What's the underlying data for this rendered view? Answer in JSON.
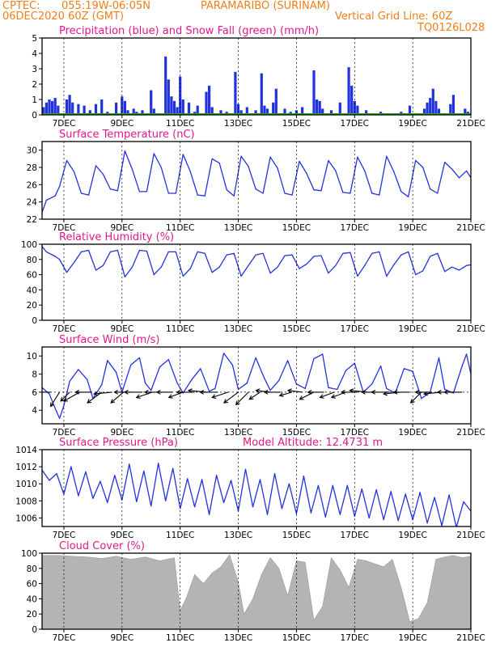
{
  "header": {
    "source": "CPTEC:",
    "coords": "055:19W-06:05N",
    "station": "PARAMARIBO (SURINAM)",
    "run": "06DEC2020 60Z (GMT)",
    "grid_note": "Vertical Grid Line: 60Z",
    "code": "TQ0126L028"
  },
  "colors": {
    "header": "#f07f1a",
    "titles": "#e0188a",
    "series": "#2233dd",
    "snow": "#22aa22",
    "cloud": "#b4b4b4"
  },
  "x_axis": {
    "start_day": 6.25,
    "end_day": 21.0,
    "tick_days": [
      7,
      9,
      11,
      13,
      15,
      17,
      19,
      21
    ],
    "tick_labels": [
      "7DEC",
      "9DEC",
      "11DEC",
      "13DEC",
      "15DEC",
      "17DEC",
      "19DEC",
      "21DEC"
    ]
  },
  "chart_data": [
    {
      "id": "precip",
      "type": "bar",
      "title": "Precipitation (blue) and Snow Fall (green) (mm/h)",
      "ylim": [
        0,
        5
      ],
      "yticks": [
        0,
        1,
        2,
        3,
        4,
        5
      ],
      "ytick_labels": [
        "0",
        "1",
        "2",
        "3",
        "4",
        "5"
      ],
      "x": [
        6.3,
        6.4,
        6.5,
        6.6,
        6.7,
        6.8,
        7.1,
        7.2,
        7.3,
        7.5,
        7.7,
        7.9,
        8.1,
        8.3,
        8.5,
        8.8,
        9.0,
        9.1,
        9.2,
        9.3,
        9.4,
        9.5,
        9.7,
        10.0,
        10.1,
        10.5,
        10.6,
        10.7,
        10.8,
        10.9,
        11.0,
        11.1,
        11.3,
        11.5,
        11.6,
        11.9,
        12.0,
        12.1,
        12.4,
        12.6,
        12.9,
        13.0,
        13.1,
        13.3,
        13.6,
        13.8,
        13.9,
        14.0,
        14.2,
        14.3,
        14.6,
        14.8,
        15.0,
        15.2,
        15.4,
        15.6,
        15.7,
        15.8,
        15.9,
        16.2,
        16.5,
        16.8,
        16.9,
        17.0,
        17.1,
        17.4,
        17.9,
        18.2,
        18.6,
        18.9,
        19.2,
        19.4,
        19.5,
        19.6,
        19.7,
        19.8,
        19.9,
        20.3,
        20.4,
        20.8,
        20.9
      ],
      "series": [
        {
          "values": [
            0.5,
            0.8,
            1.0,
            0.9,
            1.1,
            0.6,
            1.0,
            1.3,
            0.8,
            0.7,
            0.6,
            0.3,
            0.7,
            1.0,
            0.2,
            0.8,
            1.2,
            0.9,
            0.3,
            0.1,
            0.4,
            0.2,
            0.3,
            1.6,
            0.4,
            3.8,
            2.3,
            1.2,
            0.9,
            0.5,
            2.5,
            1.0,
            0.8,
            0.2,
            0.6,
            1.5,
            1.9,
            0.5,
            0.3,
            0.2,
            2.8,
            0.7,
            0.3,
            0.5,
            0.3,
            2.7,
            0.6,
            0.4,
            0.8,
            1.7,
            0.4,
            0.2,
            0.3,
            0.5,
            0.1,
            2.9,
            1.0,
            0.9,
            0.4,
            0.3,
            0.8,
            3.1,
            1.9,
            0.9,
            0.6,
            0.3,
            0.2,
            0.1,
            0.2,
            0.6,
            0.1,
            0.4,
            0.8,
            1.1,
            1.7,
            0.9,
            0.4,
            0.7,
            1.3,
            0.4,
            0.2
          ]
        }
      ]
    },
    {
      "id": "temperature",
      "type": "line",
      "title": "Surface Temperature (nC)",
      "ylim": [
        22,
        31
      ],
      "yticks": [
        22,
        24,
        26,
        28,
        30
      ],
      "ytick_labels": [
        "22",
        "24",
        "26",
        "28",
        "30"
      ],
      "x": [
        6.25,
        6.4,
        6.7,
        6.85,
        7.1,
        7.35,
        7.6,
        7.85,
        8.1,
        8.35,
        8.6,
        8.85,
        9.1,
        9.35,
        9.6,
        9.85,
        10.1,
        10.35,
        10.6,
        10.85,
        11.1,
        11.35,
        11.6,
        11.85,
        12.1,
        12.35,
        12.6,
        12.85,
        13.1,
        13.35,
        13.6,
        13.85,
        14.1,
        14.35,
        14.6,
        14.85,
        15.1,
        15.35,
        15.6,
        15.85,
        16.1,
        16.35,
        16.6,
        16.85,
        17.1,
        17.35,
        17.6,
        17.85,
        18.1,
        18.35,
        18.6,
        18.85,
        19.1,
        19.35,
        19.6,
        19.85,
        20.1,
        20.35,
        20.6,
        20.85,
        21.0
      ],
      "series": [
        {
          "name": "Temperature",
          "values": [
            22.8,
            24.2,
            24.7,
            25.8,
            28.8,
            27.5,
            25.0,
            24.8,
            28.2,
            27.2,
            25.5,
            25.3,
            29.9,
            27.8,
            25.2,
            25.2,
            29.6,
            28.0,
            25.0,
            25.0,
            29.5,
            27.5,
            24.8,
            24.7,
            29.0,
            28.5,
            25.4,
            24.7,
            29.3,
            28.1,
            25.5,
            25.0,
            29.2,
            27.9,
            25.0,
            24.8,
            28.7,
            27.3,
            25.4,
            25.3,
            28.8,
            27.6,
            25.1,
            25.0,
            29.2,
            27.6,
            25.0,
            24.8,
            29.3,
            27.5,
            25.2,
            24.6,
            28.8,
            28.0,
            25.5,
            25.0,
            28.6,
            27.8,
            26.8,
            27.6,
            26.8
          ]
        }
      ]
    },
    {
      "id": "humidity",
      "type": "line",
      "title": "Relative Humidity (%)",
      "ylim": [
        0,
        100
      ],
      "yticks": [
        0,
        20,
        40,
        60,
        80,
        100
      ],
      "ytick_labels": [
        "0",
        "20",
        "40",
        "60",
        "80",
        "100"
      ],
      "x": [
        6.25,
        6.4,
        6.7,
        6.85,
        7.1,
        7.35,
        7.6,
        7.85,
        8.1,
        8.35,
        8.6,
        8.85,
        9.1,
        9.35,
        9.6,
        9.85,
        10.1,
        10.35,
        10.6,
        10.85,
        11.1,
        11.35,
        11.6,
        11.85,
        12.1,
        12.35,
        12.6,
        12.85,
        13.1,
        13.35,
        13.6,
        13.85,
        14.1,
        14.35,
        14.6,
        14.85,
        15.1,
        15.35,
        15.6,
        15.85,
        16.1,
        16.35,
        16.6,
        16.85,
        17.1,
        17.35,
        17.6,
        17.85,
        18.1,
        18.35,
        18.6,
        18.85,
        19.1,
        19.35,
        19.6,
        19.85,
        20.1,
        20.35,
        20.6,
        20.85,
        21.0
      ],
      "series": [
        {
          "name": "RH",
          "values": [
            97,
            90,
            84,
            80,
            63,
            76,
            90,
            92,
            66,
            72,
            90,
            92,
            57,
            70,
            92,
            91,
            60,
            70,
            90,
            90,
            58,
            68,
            90,
            88,
            63,
            70,
            86,
            88,
            58,
            72,
            86,
            88,
            62,
            70,
            85,
            86,
            68,
            74,
            84,
            85,
            62,
            72,
            88,
            89,
            58,
            72,
            88,
            90,
            58,
            73,
            86,
            90,
            60,
            65,
            84,
            88,
            64,
            70,
            66,
            72,
            73
          ]
        }
      ]
    },
    {
      "id": "wind",
      "type": "line",
      "title": "Surface Wind (m/s)",
      "ylim": [
        2.5,
        11
      ],
      "yticks": [
        4,
        6,
        8,
        10
      ],
      "ytick_labels": [
        "4",
        "6",
        "8",
        "10"
      ],
      "x": [
        6.25,
        6.5,
        6.7,
        6.85,
        7.0,
        7.2,
        7.5,
        7.8,
        8.0,
        8.3,
        8.5,
        8.8,
        9.0,
        9.3,
        9.6,
        9.8,
        10.0,
        10.3,
        10.6,
        10.9,
        11.1,
        11.4,
        11.7,
        12.0,
        12.2,
        12.5,
        12.8,
        13.0,
        13.3,
        13.6,
        13.9,
        14.1,
        14.4,
        14.7,
        15.0,
        15.3,
        15.6,
        15.9,
        16.1,
        16.4,
        16.7,
        17.0,
        17.3,
        17.6,
        17.9,
        18.1,
        18.4,
        18.7,
        19.0,
        19.3,
        19.6,
        19.9,
        20.1,
        20.4,
        20.7,
        20.85,
        21.0
      ],
      "series": [
        {
          "name": "Wind speed",
          "values": [
            6.5,
            5.8,
            4.2,
            3.1,
            4.5,
            7.2,
            8.5,
            7.4,
            5.3,
            6.8,
            9.5,
            8.2,
            6.0,
            9.0,
            9.8,
            7.0,
            6.2,
            8.8,
            9.6,
            7.0,
            5.9,
            7.4,
            8.6,
            6.1,
            6.4,
            10.3,
            9.0,
            6.3,
            7.0,
            9.8,
            7.5,
            6.2,
            7.3,
            9.5,
            6.9,
            6.4,
            9.7,
            10.2,
            6.5,
            6.3,
            8.4,
            9.2,
            6.0,
            6.9,
            8.9,
            6.4,
            5.9,
            8.6,
            8.3,
            5.3,
            6.0,
            9.8,
            6.3,
            5.9,
            8.9,
            10.2,
            8.0
          ]
        }
      ],
      "vectors": {
        "x": [
          6.55,
          6.85,
          7.2,
          7.55,
          7.95,
          8.3,
          8.65,
          9.05,
          9.35,
          9.7,
          10.05,
          10.4,
          10.75,
          11.1,
          11.5,
          11.9,
          12.3,
          12.65,
          13.0,
          13.35,
          13.75,
          14.1,
          14.45,
          14.85,
          15.2,
          15.6,
          15.95,
          16.3,
          16.7,
          17.1,
          17.45,
          17.8,
          18.2,
          18.55,
          18.9,
          19.3,
          19.65,
          20.0,
          20.35,
          20.7
        ],
        "u": [
          -1.0,
          -0.5,
          -0.5,
          -0.9,
          -0.9,
          -0.8,
          -1.0,
          -0.7,
          -1.0,
          -1.0,
          -0.9,
          -1.0,
          -0.9,
          -0.8,
          -1.0,
          -1.0,
          -1.0,
          -0.9,
          -0.8,
          -0.7,
          -0.6,
          -0.8,
          -0.9,
          -0.7,
          -0.8,
          -0.8,
          -0.9,
          -0.8,
          -0.8,
          -0.9,
          -1.0,
          -0.9,
          -1.0,
          -0.9,
          -0.9,
          -0.6,
          -0.9,
          -1.0,
          -0.8,
          -1.0
        ],
        "v": [
          0.0,
          -0.8,
          -0.5,
          -0.5,
          0.0,
          -0.6,
          -0.1,
          -0.6,
          0.0,
          0.0,
          -0.3,
          0.0,
          0.0,
          -0.3,
          0.0,
          0.1,
          0.0,
          -0.3,
          -0.6,
          -0.7,
          -0.4,
          0.1,
          0.0,
          -0.2,
          0.1,
          -0.4,
          0.0,
          -0.3,
          -0.3,
          0.0,
          0.1,
          0.0,
          0.0,
          -0.1,
          0.0,
          -0.6,
          0.0,
          -0.1,
          0.0,
          0.0
        ]
      }
    },
    {
      "id": "pressure",
      "type": "line",
      "title": "Surface Pressure (hPa)",
      "annotation": "Model Altitude: 12.4731 m",
      "ylim": [
        1005,
        1014
      ],
      "yticks": [
        1006,
        1008,
        1010,
        1012,
        1014
      ],
      "ytick_labels": [
        "1006",
        "1008",
        "1010",
        "1012",
        "1014"
      ],
      "x": [
        6.25,
        6.5,
        6.75,
        7.0,
        7.25,
        7.5,
        7.75,
        8.0,
        8.25,
        8.5,
        8.75,
        9.0,
        9.25,
        9.5,
        9.75,
        10.0,
        10.25,
        10.5,
        10.75,
        11.0,
        11.25,
        11.5,
        11.75,
        12.0,
        12.25,
        12.5,
        12.75,
        13.0,
        13.25,
        13.5,
        13.75,
        14.0,
        14.25,
        14.5,
        14.75,
        15.0,
        15.25,
        15.5,
        15.75,
        16.0,
        16.25,
        16.5,
        16.75,
        17.0,
        17.25,
        17.5,
        17.75,
        18.0,
        18.25,
        18.5,
        18.75,
        19.0,
        19.25,
        19.5,
        19.75,
        20.0,
        20.25,
        20.5,
        20.75,
        21.0
      ],
      "series": [
        {
          "name": "Pressure",
          "values": [
            1011.6,
            1010.4,
            1011.2,
            1008.8,
            1012.0,
            1008.6,
            1011.4,
            1008.3,
            1010.3,
            1007.8,
            1011.0,
            1008.1,
            1012.3,
            1007.9,
            1011.5,
            1007.4,
            1012.4,
            1008.0,
            1011.8,
            1007.1,
            1010.6,
            1007.3,
            1010.5,
            1006.4,
            1011.0,
            1007.8,
            1010.4,
            1006.8,
            1011.7,
            1007.3,
            1010.5,
            1006.4,
            1011.2,
            1007.1,
            1010.0,
            1006.5,
            1010.9,
            1006.6,
            1009.8,
            1006.1,
            1009.8,
            1006.4,
            1009.8,
            1006.2,
            1009.4,
            1006.0,
            1009.3,
            1005.8,
            1009.1,
            1005.7,
            1008.8,
            1005.8,
            1009.0,
            1005.4,
            1008.4,
            1005.1,
            1008.7,
            1004.9,
            1007.9,
            1006.8
          ]
        }
      ]
    },
    {
      "id": "cloud",
      "type": "area",
      "title": "Cloud Cover (%)",
      "ylim": [
        0,
        100
      ],
      "yticks": [
        0,
        20,
        40,
        60,
        80,
        100
      ],
      "ytick_labels": [
        "0",
        "20",
        "40",
        "60",
        "80",
        "100"
      ],
      "x": [
        6.25,
        6.8,
        7.3,
        7.8,
        8.3,
        8.8,
        9.3,
        9.8,
        10.3,
        10.8,
        11.0,
        11.2,
        11.5,
        11.8,
        12.1,
        12.4,
        12.7,
        13.0,
        13.2,
        13.5,
        13.8,
        14.1,
        14.4,
        14.7,
        15.0,
        15.3,
        15.6,
        15.9,
        16.2,
        16.5,
        16.8,
        17.1,
        17.4,
        17.7,
        18.0,
        18.3,
        18.6,
        18.9,
        19.2,
        19.5,
        19.8,
        20.1,
        20.4,
        20.7,
        21.0
      ],
      "series": [
        {
          "name": "Cloud cover",
          "values": [
            97,
            97,
            96,
            95,
            93,
            96,
            92,
            95,
            90,
            94,
            25,
            40,
            72,
            60,
            74,
            82,
            98,
            62,
            20,
            40,
            72,
            94,
            80,
            44,
            90,
            88,
            12,
            30,
            94,
            78,
            55,
            92,
            90,
            86,
            82,
            92,
            55,
            10,
            14,
            35,
            92,
            95,
            97,
            94,
            96
          ]
        }
      ]
    }
  ]
}
